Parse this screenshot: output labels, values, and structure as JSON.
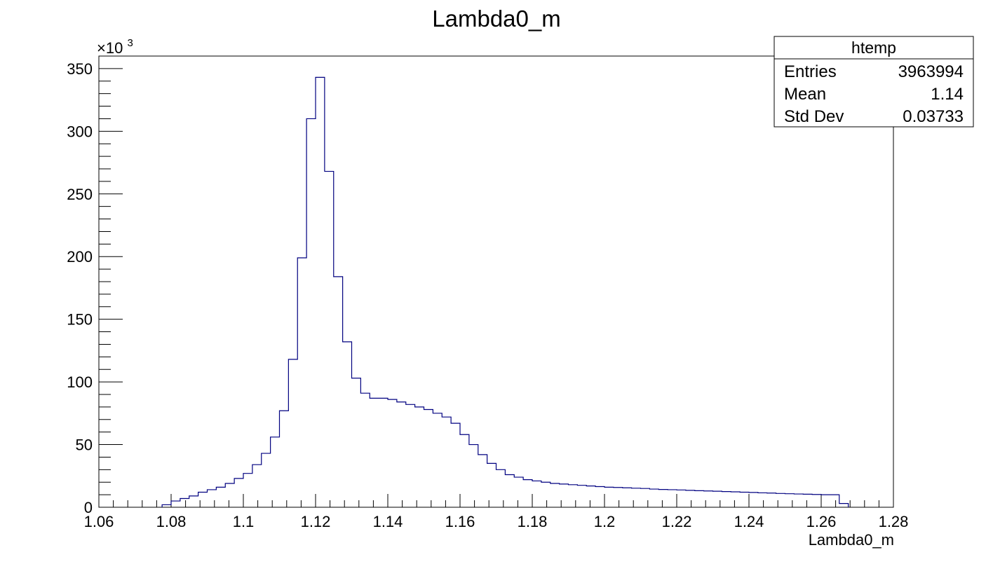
{
  "chart_data": {
    "type": "bar",
    "title": "Lambda0_m",
    "xlabel": "Lambda0_m",
    "ylabel": "",
    "y_multiplier_label": "×10",
    "y_multiplier_exponent": "3",
    "xlim": [
      1.06,
      1.28
    ],
    "ylim": [
      0,
      360
    ],
    "bin_width": 0.0025,
    "x_ticks": [
      "1.06",
      "1.08",
      "1.1",
      "1.12",
      "1.14",
      "1.16",
      "1.18",
      "1.2",
      "1.22",
      "1.24",
      "1.26",
      "1.28"
    ],
    "y_ticks": [
      "0",
      "50",
      "100",
      "150",
      "200",
      "250",
      "300",
      "350"
    ],
    "grid": false,
    "legend": "none",
    "line_color": "#000080",
    "bins_low_edge": [
      1.0775,
      1.08,
      1.0825,
      1.085,
      1.0875,
      1.09,
      1.0925,
      1.095,
      1.0975,
      1.1,
      1.1025,
      1.105,
      1.1075,
      1.11,
      1.1125,
      1.115,
      1.1175,
      1.12,
      1.1225,
      1.125,
      1.1275,
      1.13,
      1.1325,
      1.135,
      1.1375,
      1.14,
      1.1425,
      1.145,
      1.1475,
      1.15,
      1.1525,
      1.155,
      1.1575,
      1.16,
      1.1625,
      1.165,
      1.1675,
      1.17,
      1.1725,
      1.175,
      1.1775,
      1.18,
      1.1825,
      1.185,
      1.1875,
      1.19,
      1.1925,
      1.195,
      1.1975,
      1.2,
      1.2025,
      1.205,
      1.2075,
      1.21,
      1.2125,
      1.215,
      1.2175,
      1.22,
      1.2225,
      1.225,
      1.2275,
      1.23,
      1.2325,
      1.235,
      1.2375,
      1.24,
      1.2425,
      1.245,
      1.2475,
      1.25,
      1.2525,
      1.255,
      1.2575,
      1.26,
      1.2625,
      1.265
    ],
    "values": [
      2,
      5,
      7,
      9,
      12,
      14,
      16,
      19,
      23,
      27,
      34,
      43,
      56,
      77,
      118,
      199,
      310,
      343,
      268,
      184,
      132,
      103,
      91,
      87,
      87,
      86,
      84,
      82,
      80,
      78,
      75,
      72,
      67,
      58,
      50,
      42,
      35,
      30,
      26,
      24,
      22,
      21,
      20,
      19,
      18.5,
      18,
      17.5,
      17,
      16.5,
      16,
      15.8,
      15.5,
      15.2,
      15,
      14.5,
      14.2,
      14,
      13.8,
      13.5,
      13.2,
      13,
      12.8,
      12.5,
      12.3,
      12,
      11.8,
      11.5,
      11.3,
      11,
      10.8,
      10.6,
      10.4,
      10.2,
      10,
      10,
      3
    ]
  },
  "stats_box": {
    "title": "htemp",
    "rows": [
      {
        "label": "Entries",
        "value": "3963994"
      },
      {
        "label": "Mean",
        "value": "1.14"
      },
      {
        "label": "Std Dev",
        "value": "0.03733"
      }
    ]
  }
}
